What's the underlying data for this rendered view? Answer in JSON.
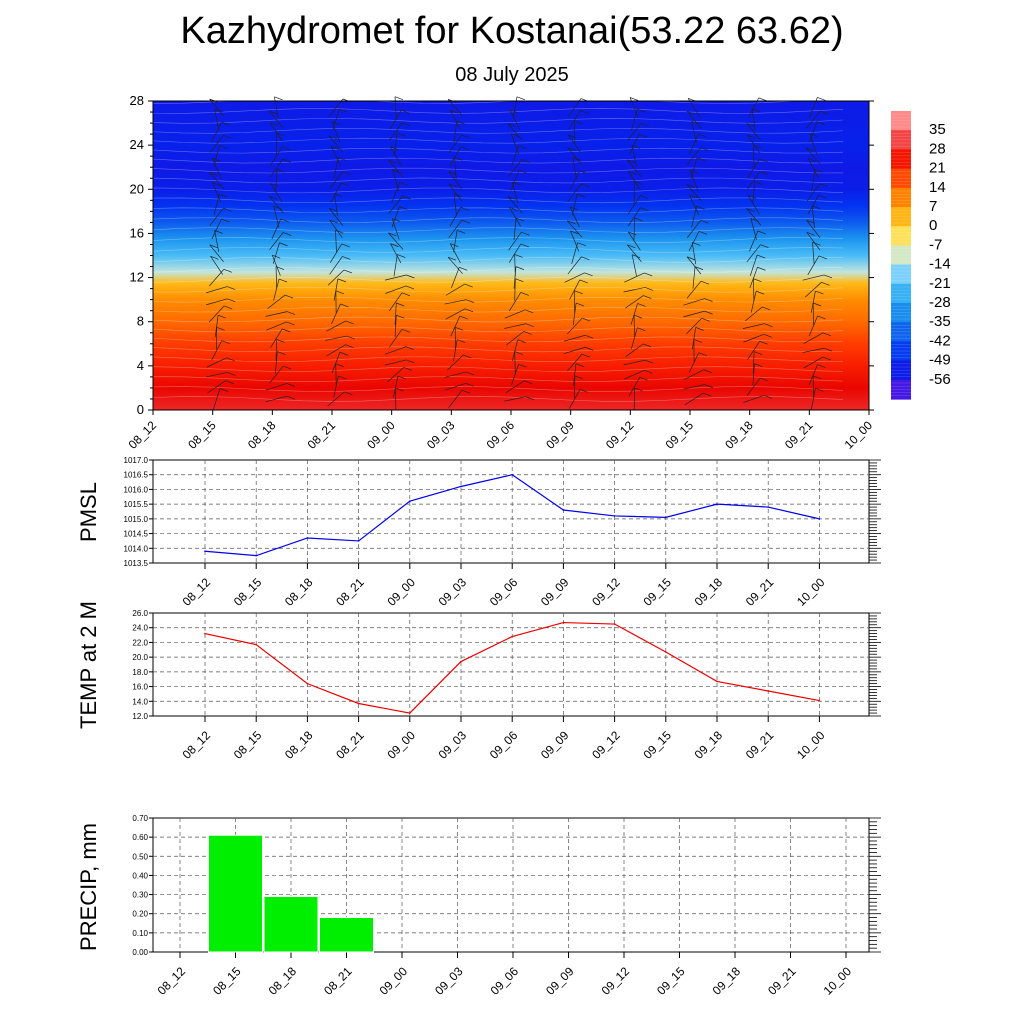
{
  "title": "Kazhydromet for Kostanai(53.22 63.62)",
  "subtitle": "08 July 2025",
  "chart_data": [
    {
      "type": "heatmap",
      "name": "cross-section",
      "x_tick_labels": [
        "08_12",
        "08_15",
        "08_18",
        "08_21",
        "09_00",
        "09_03",
        "09_06",
        "09_09",
        "09_12",
        "09_15",
        "09_18",
        "09_21",
        "10_00"
      ],
      "y_ticks": [
        0,
        4,
        8,
        12,
        16,
        20,
        24,
        28
      ],
      "ylim": [
        0,
        28
      ],
      "colorbar_labels": [
        "35",
        "28",
        "21",
        "14",
        "7",
        "0",
        "-7",
        "-14",
        "-21",
        "-28",
        "-35",
        "-42",
        "-49",
        "-56"
      ],
      "colorbar_range": [
        -63,
        42
      ],
      "temperature_profile": [
        {
          "y": 0,
          "value": 30
        },
        {
          "y": 2,
          "value": 27
        },
        {
          "y": 4,
          "value": 23
        },
        {
          "y": 6,
          "value": 19
        },
        {
          "y": 8,
          "value": 14
        },
        {
          "y": 10,
          "value": 9
        },
        {
          "y": 11.5,
          "value": 3
        },
        {
          "y": 12.5,
          "value": -12
        },
        {
          "y": 14,
          "value": -22
        },
        {
          "y": 15.5,
          "value": -30
        },
        {
          "y": 17,
          "value": -40
        },
        {
          "y": 18.5,
          "value": -47
        },
        {
          "y": 20,
          "value": -52
        },
        {
          "y": 22,
          "value": -53
        },
        {
          "y": 24,
          "value": -51
        },
        {
          "y": 26,
          "value": -52
        },
        {
          "y": 28,
          "value": -53
        }
      ],
      "colors": {
        "35": "#ff8a8a",
        "28": "#e60000",
        "21": "#ff2a00",
        "14": "#ff6a00",
        "7": "#ff9b00",
        "0": "#ffcf2a",
        "-7": "#fff08a",
        "-14": "#a8e0ff",
        "-21": "#50c0f8",
        "-28": "#20a0f0",
        "-35": "#1478ec",
        "-42": "#0a50f0",
        "-49": "#0028f0",
        "-56": "#1a10e0",
        "-63": "#7020e8"
      }
    },
    {
      "type": "line",
      "name": "PMSL",
      "ylabel": "PMSL",
      "x": [
        "08_12",
        "08_15",
        "08_18",
        "08_21",
        "09_00",
        "09_03",
        "09_06",
        "09_09",
        "09_12",
        "09_15",
        "09_18",
        "09_21",
        "10_00"
      ],
      "y": [
        1013.9,
        1013.75,
        1014.35,
        1014.25,
        1015.6,
        1016.1,
        1016.5,
        1015.3,
        1015.1,
        1015.05,
        1015.5,
        1015.4,
        1015.0
      ],
      "ylim": [
        1013.5,
        1017.0
      ],
      "y_ticks": [
        "1013.5",
        "1014.0",
        "1014.5",
        "1015.0",
        "1015.5",
        "1016.0",
        "1016.5",
        "1017.0"
      ],
      "color": "#0000ee"
    },
    {
      "type": "line",
      "name": "TEMP",
      "ylabel": "TEMP at 2 M",
      "x": [
        "08_12",
        "08_15",
        "08_18",
        "08_21",
        "09_00",
        "09_03",
        "09_06",
        "09_09",
        "09_12",
        "09_15",
        "09_18",
        "09_21",
        "10_00"
      ],
      "y": [
        23.2,
        21.7,
        16.4,
        13.7,
        12.4,
        19.4,
        22.8,
        24.7,
        24.5,
        20.7,
        16.7,
        15.4,
        14.1
      ],
      "ylim": [
        12.0,
        26.0
      ],
      "y_ticks": [
        "12.0",
        "14.0",
        "16.0",
        "18.0",
        "20.0",
        "22.0",
        "24.0",
        "26.0"
      ],
      "color": "#ee0000"
    },
    {
      "type": "bar",
      "name": "PRECIP",
      "ylabel": "PRECIP, mm",
      "categories": [
        "08_12",
        "08_15",
        "08_18",
        "08_21",
        "09_00",
        "09_03",
        "09_06",
        "09_09",
        "09_12",
        "09_15",
        "09_18",
        "09_21",
        "10_00"
      ],
      "values": [
        0,
        0.61,
        0.29,
        0.18,
        0,
        0,
        0,
        0,
        0,
        0,
        0,
        0,
        0
      ],
      "ylim": [
        0,
        0.7
      ],
      "y_ticks": [
        "0.00",
        "0.10",
        "0.20",
        "0.30",
        "0.40",
        "0.50",
        "0.60",
        "0.70"
      ],
      "color": "#00ee00"
    }
  ]
}
